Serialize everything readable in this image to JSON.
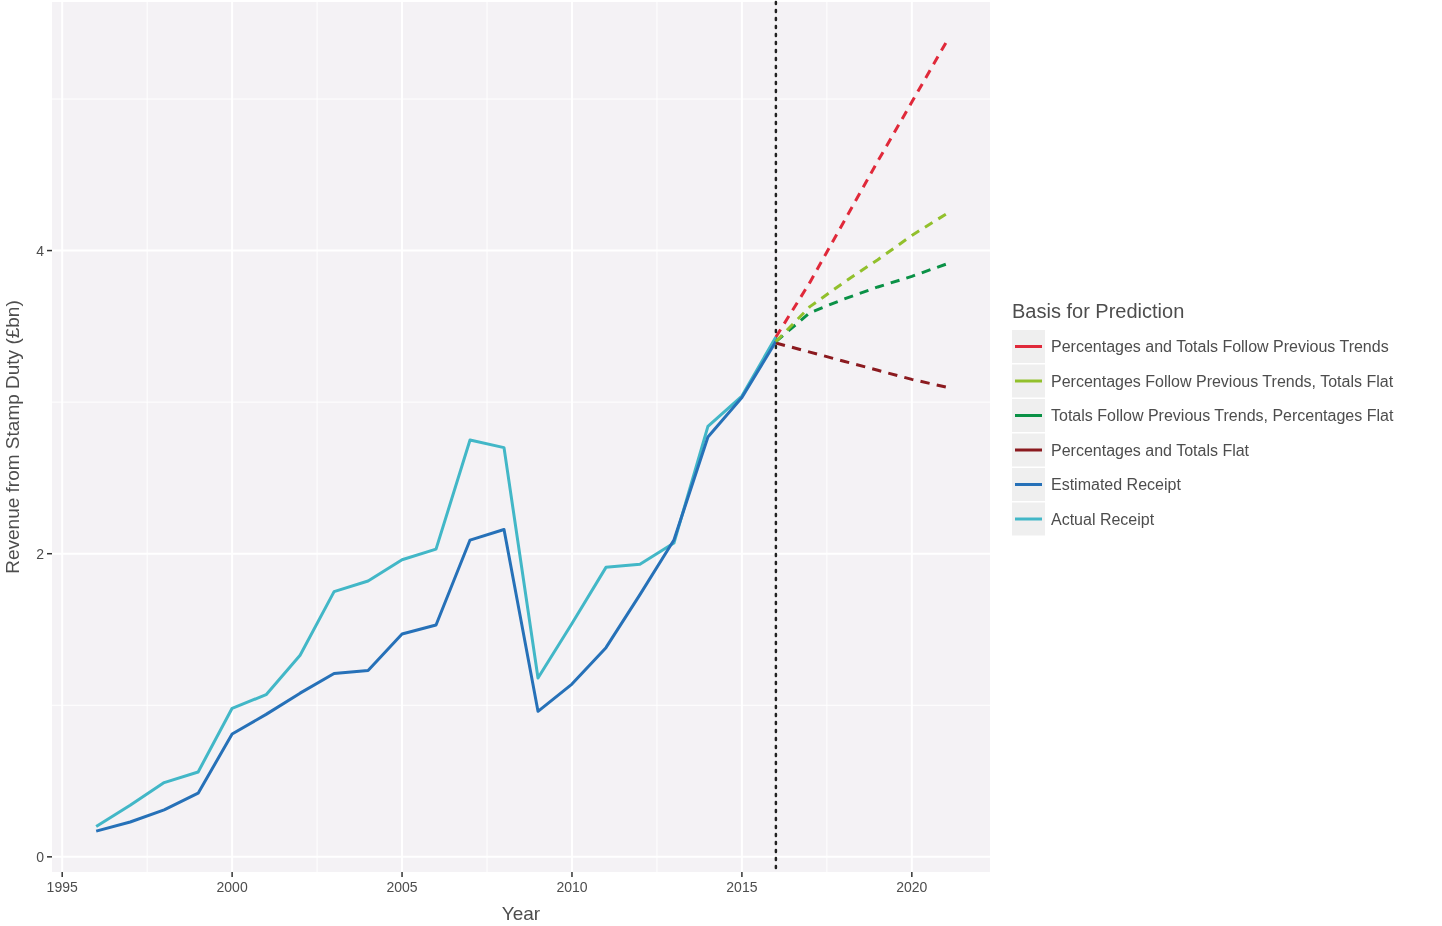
{
  "chart_data": {
    "type": "line",
    "xlabel": "Year",
    "ylabel": "Revenue from Stamp Duty (£bn)",
    "legend_title": "Basis for Prediction",
    "xlim": [
      1994.7,
      2022.3
    ],
    "xticks": [
      1995,
      2000,
      2005,
      2010,
      2015,
      2020
    ],
    "ylim": [
      -0.1,
      5.64
    ],
    "yticks": [
      0,
      2,
      4
    ],
    "grid": true,
    "legend": "right",
    "line_style": "solid",
    "ref_lines": [
      {
        "axis": "x",
        "value": 2016,
        "label": null,
        "color": "#222222",
        "line_style": "dotted"
      }
    ],
    "series": [
      {
        "name": "Percentages and Totals Follow Previous Trends",
        "color": "#e0293a",
        "line_style": "dashed",
        "x": [
          2016,
          2017,
          2018,
          2019,
          2020,
          2021
        ],
        "values": [
          3.43,
          3.79,
          4.19,
          4.59,
          4.98,
          5.37
        ]
      },
      {
        "name": "Percentages Follow Previous Trends, Totals Flat",
        "color": "#92c02c",
        "line_style": "dashed",
        "x": [
          2016,
          2017,
          2018,
          2019,
          2020,
          2021
        ],
        "values": [
          3.4,
          3.63,
          3.79,
          3.94,
          4.1,
          4.24
        ]
      },
      {
        "name": "Totals Follow Previous Trends, Percentages Flat",
        "color": "#0a9146",
        "line_style": "dashed",
        "x": [
          2016,
          2017,
          2018,
          2019,
          2020,
          2021
        ],
        "values": [
          3.4,
          3.59,
          3.68,
          3.76,
          3.83,
          3.91
        ]
      },
      {
        "name": "Percentages and Totals Flat",
        "color": "#8b1a1f",
        "line_style": "dashed",
        "x": [
          2016,
          2017,
          2018,
          2019,
          2020,
          2021
        ],
        "values": [
          3.39,
          3.33,
          3.27,
          3.21,
          3.15,
          3.1
        ]
      },
      {
        "name": "Estimated Receipt",
        "color": "#2671b8",
        "x": [
          1996,
          1997,
          1998,
          1999,
          2000,
          2001,
          2002,
          2003,
          2004,
          2005,
          2006,
          2007,
          2008,
          2009,
          2010,
          2011,
          2012,
          2013,
          2014,
          2015,
          2016
        ],
        "values": [
          0.17,
          0.23,
          0.31,
          0.42,
          0.81,
          0.94,
          1.08,
          1.21,
          1.23,
          1.47,
          1.53,
          2.09,
          2.16,
          0.96,
          1.14,
          1.38,
          1.73,
          2.09,
          2.77,
          3.03,
          3.4
        ]
      },
      {
        "name": "Actual Receipt",
        "color": "#42b7c7",
        "x": [
          1996,
          1997,
          1998,
          1999,
          2000,
          2001,
          2002,
          2003,
          2004,
          2005,
          2006,
          2007,
          2008,
          2009,
          2010,
          2011,
          2012,
          2013,
          2014,
          2015,
          2016
        ],
        "values": [
          0.2,
          0.34,
          0.49,
          0.56,
          0.98,
          1.07,
          1.33,
          1.75,
          1.82,
          1.96,
          2.03,
          2.75,
          2.7,
          1.18,
          1.54,
          1.91,
          1.93,
          2.07,
          2.84,
          3.04,
          3.43
        ]
      }
    ]
  }
}
